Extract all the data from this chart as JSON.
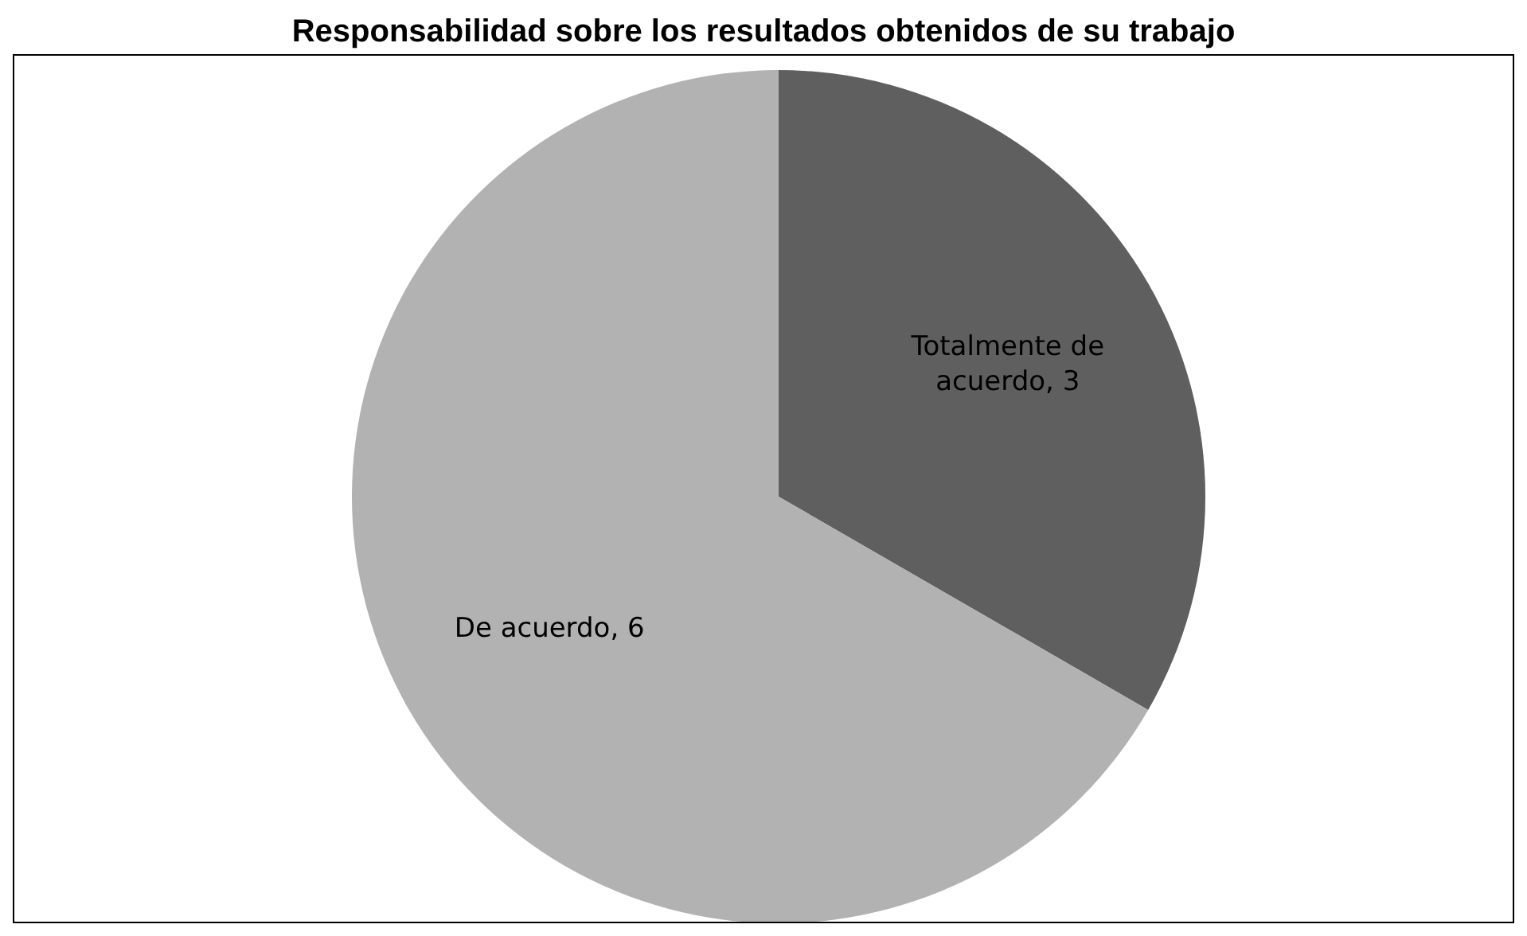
{
  "chart_data": {
    "type": "pie",
    "title": "Responsabilidad sobre los resultados obtenidos de su trabajo",
    "categories": [
      "Totalmente de acuerdo",
      "De acuerdo"
    ],
    "values": [
      3,
      6
    ],
    "colors": [
      "#5f5f5f",
      "#b2b2b2"
    ],
    "value_labels": [
      ", 3",
      ", 6"
    ],
    "legend": false
  }
}
